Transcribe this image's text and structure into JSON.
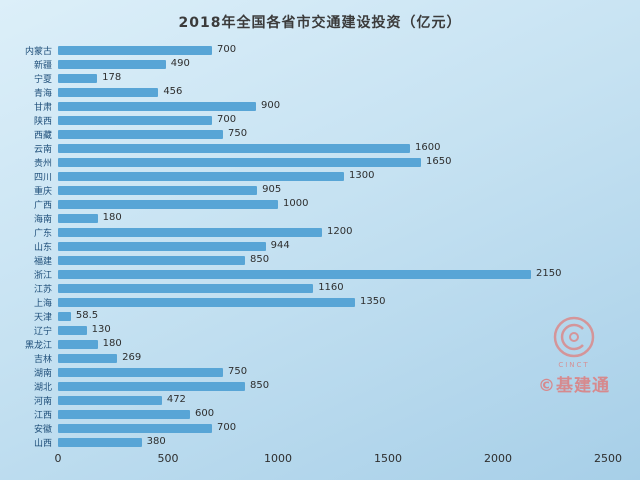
{
  "title": "2018年全国各省市交通建设投资（亿元）",
  "watermark": {
    "brand": "CINCT",
    "caption": "©基建通",
    "color": "#e07878"
  },
  "chart_data": {
    "type": "bar",
    "orientation": "horizontal",
    "title": "2018年全国各省市交通建设投资（亿元）",
    "categories": [
      "内蒙古",
      "新疆",
      "宁夏",
      "青海",
      "甘肃",
      "陕西",
      "西藏",
      "云南",
      "贵州",
      "四川",
      "重庆",
      "广西",
      "海南",
      "广东",
      "山东",
      "福建",
      "浙江",
      "江苏",
      "上海",
      "天津",
      "辽宁",
      "黑龙江",
      "吉林",
      "湖南",
      "湖北",
      "河南",
      "江西",
      "安徽",
      "山西"
    ],
    "values": [
      700,
      490,
      178,
      456,
      900,
      700,
      750,
      1600,
      1650,
      1300,
      905,
      1000,
      180,
      1200,
      944,
      850,
      2150,
      1160,
      1350,
      58.5,
      130,
      180,
      269,
      750,
      850,
      472,
      600,
      700,
      380
    ],
    "value_labels": [
      "700",
      "490",
      "178",
      "456",
      "900",
      "700",
      "750",
      "1600",
      "1650",
      "1300",
      "905",
      "1000",
      "180",
      "1200",
      "944",
      "850",
      "2150",
      "1160",
      "1350",
      "58.5",
      "130",
      "180",
      "269",
      "750",
      "850",
      "472",
      "600",
      "700",
      "380"
    ],
    "xlabel": "",
    "ylabel": "",
    "xlim": [
      0,
      2500
    ],
    "x_ticks": [
      0,
      500,
      1000,
      1500,
      2000,
      2500
    ],
    "bar_color": "#58a5d6",
    "grid": false,
    "legend": "none"
  }
}
